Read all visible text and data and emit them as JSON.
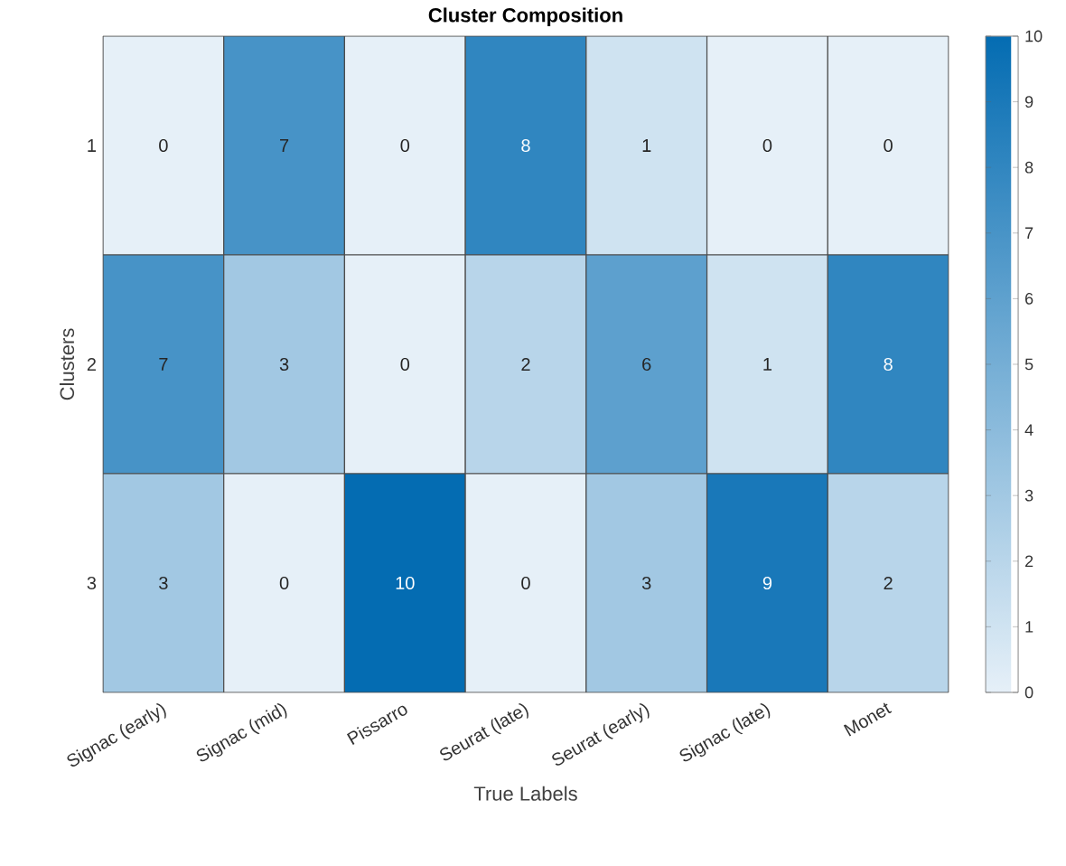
{
  "chart_data": {
    "type": "heatmap",
    "title": "Cluster Composition",
    "xlabel": "True Labels",
    "ylabel": "Clusters",
    "categories": [
      "Signac (early)",
      "Signac (mid)",
      "Pissarro",
      "Seurat (late)",
      "Seurat (early)",
      "Signac (late)",
      "Monet"
    ],
    "y_categories": [
      "1",
      "2",
      "3"
    ],
    "cells": [
      [
        0,
        7,
        0,
        8,
        1,
        0,
        0
      ],
      [
        7,
        3,
        0,
        2,
        6,
        1,
        8
      ],
      [
        3,
        0,
        10,
        0,
        3,
        9,
        2
      ]
    ],
    "clim": [
      0,
      10
    ],
    "cticks": [
      0,
      1,
      2,
      3,
      4,
      5,
      6,
      7,
      8,
      9,
      10
    ],
    "data_labels": true
  }
}
